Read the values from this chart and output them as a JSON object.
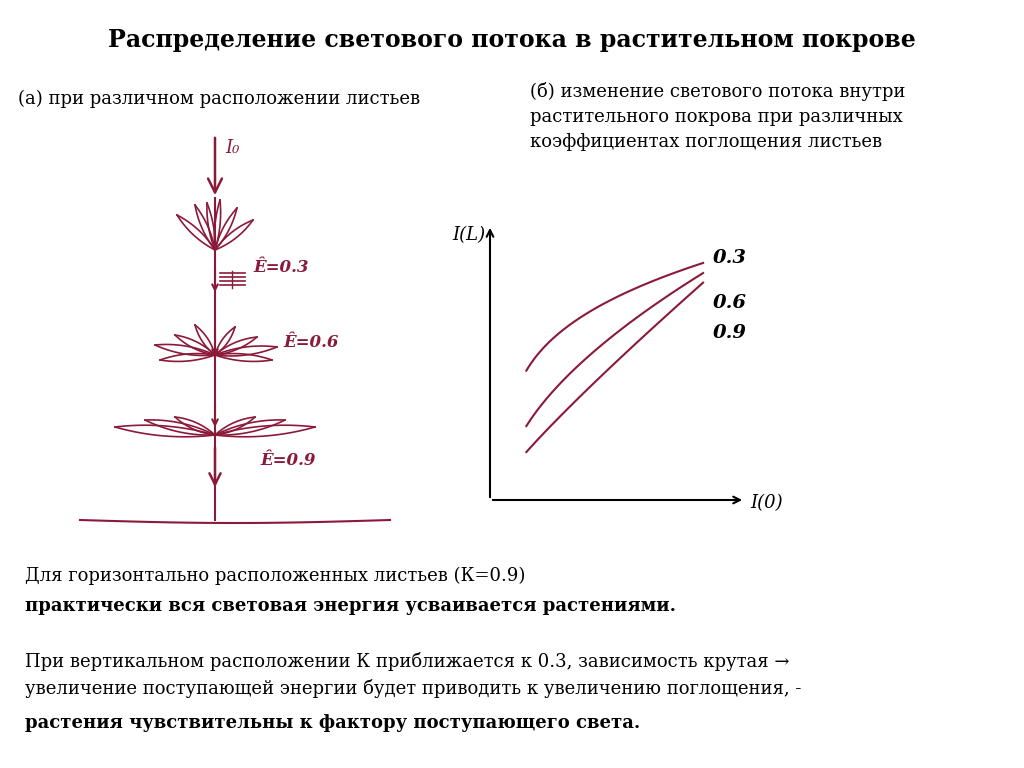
{
  "title": "Распределение светового потока в растительном покрове",
  "subtitle_a": "(а) при различном расположении листьев",
  "subtitle_b": "(б) изменение светового потока внутри\nрастительного покрова при различных\nкоэффициентах поглощения листьев",
  "curve_color": "#8B1A3A",
  "background_color": "#FFFFFF",
  "text_color": "#000000",
  "curve_labels": [
    "0.3",
    "0.6",
    "0.9"
  ],
  "bottom_text_1_normal": "Для горизонтально расположенных листьев (К=0.9)",
  "bottom_text_1_bold": "практически вся световая энергия усваивается растениями.",
  "bottom_text_2_normal": "При вертикальном расположении К приближается к 0.3, зависимость крутая →\nувеличение поступающей энергии будет приводить к увеличению поглощения, -",
  "bottom_text_2_bold": "растения чувствительны к фактору поступающего света.",
  "plant_color": "#8B1A3A",
  "label_E03": "Ê=0.3",
  "label_E06": "Ê=0.6",
  "label_E09": "Ê=0.9",
  "label_I0": "I₀",
  "label_IL": "I(L)",
  "label_I0_xaxis": "I(0)"
}
